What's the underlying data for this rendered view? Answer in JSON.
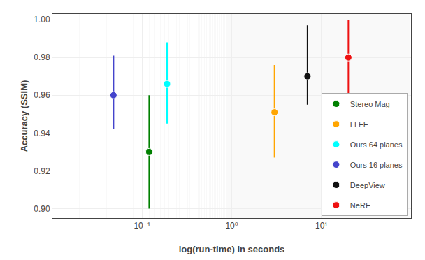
{
  "chart_data": {
    "type": "scatter",
    "xlabel": "log(run-time) in seconds",
    "ylabel": "Accuracy (SSIM)",
    "log": "x",
    "grid": true,
    "legend": "lower right",
    "marker": "circle",
    "xlim": [
      0.01,
      100
    ],
    "xticks": [
      {
        "value": 0.1,
        "label": "10⁻¹"
      },
      {
        "value": 1.0,
        "label": "10⁰"
      },
      {
        "value": 10.0,
        "label": "10¹"
      }
    ],
    "ylim": [
      0.895,
      1.003
    ],
    "yticks": [
      {
        "value": 0.9,
        "label": "0.90"
      },
      0.92,
      0.94,
      0.96,
      0.98,
      {
        "value": 1.0,
        "label": "1.00"
      }
    ],
    "series": [
      {
        "name": "Stereo Mag",
        "color": "#008000",
        "x": [
          0.12
        ],
        "values": [
          0.93
        ],
        "y_low": [
          0.9
        ],
        "y_high": [
          0.96
        ]
      },
      {
        "name": "LLFF",
        "color": "#ffa500",
        "x": [
          3.0
        ],
        "values": [
          0.951
        ],
        "y_low": [
          0.927
        ],
        "y_high": [
          0.976
        ]
      },
      {
        "name": "Ours 64 planes",
        "color": "#00ffff",
        "x": [
          0.19
        ],
        "values": [
          0.966
        ],
        "y_low": [
          0.945
        ],
        "y_high": [
          0.988
        ]
      },
      {
        "name": "Ours 16 planes",
        "color": "#4444cc",
        "x": [
          0.048
        ],
        "values": [
          0.96
        ],
        "y_low": [
          0.942
        ],
        "y_high": [
          0.981
        ]
      },
      {
        "name": "DeepView",
        "color": "#111111",
        "x": [
          7.0
        ],
        "values": [
          0.97
        ],
        "y_low": [
          0.955
        ],
        "y_high": [
          0.997
        ]
      },
      {
        "name": "NeRF",
        "color": "#ee1111",
        "x": [
          20.0
        ],
        "values": [
          0.98
        ],
        "y_low": [
          0.96
        ],
        "y_high": [
          1.0
        ]
      }
    ]
  }
}
